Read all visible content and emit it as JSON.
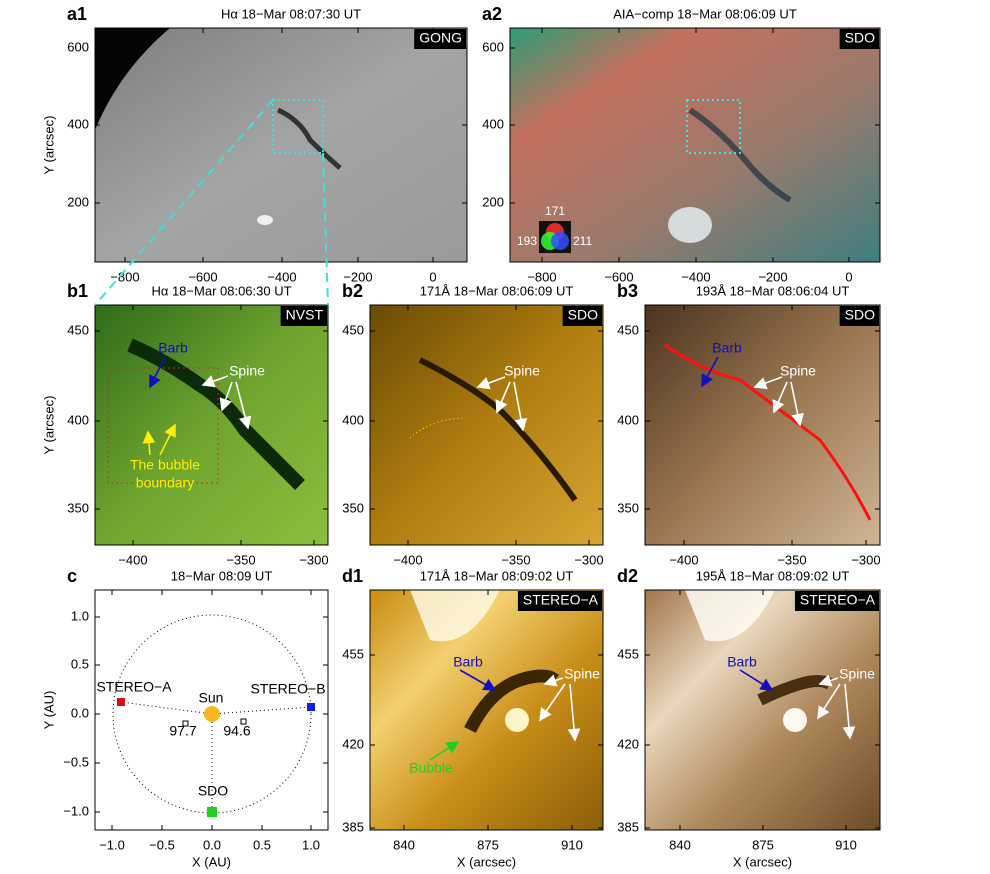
{
  "panels": [
    {
      "label": "a1",
      "title": "Hα 18−Mar 08:07:30 UT",
      "badge": "GONG",
      "y_label": "Y (arcsec)",
      "x_ticks": [
        "−800",
        "−600",
        "−400",
        "−200",
        "0"
      ],
      "y_ticks": [
        "600",
        "400",
        "200"
      ]
    },
    {
      "label": "a2",
      "title": "AIA−comp 18−Mar 08:06:09 UT",
      "badge": "SDO",
      "x_ticks": [
        "−800",
        "−600",
        "−400",
        "−200",
        "0"
      ],
      "y_ticks": [
        "600",
        "400",
        "200"
      ],
      "legend": [
        "171",
        "193",
        "211"
      ]
    },
    {
      "label": "b1",
      "title": "Hα 18−Mar 08:06:30 UT",
      "badge": "NVST",
      "y_label": "Y (arcsec)",
      "x_ticks": [
        "−400",
        "−350",
        "−300"
      ],
      "y_ticks": [
        "450",
        "400",
        "350"
      ],
      "annotations": [
        "Barb",
        "Spine",
        "The bubble",
        "boundary"
      ]
    },
    {
      "label": "b2",
      "title": "171Å 18−Mar 08:06:09 UT",
      "badge": "SDO",
      "x_ticks": [
        "−400",
        "−350",
        "−300"
      ],
      "y_ticks": [
        "450",
        "400",
        "350"
      ],
      "annotations": [
        "Spine"
      ]
    },
    {
      "label": "b3",
      "title": "193Å 18−Mar 08:06:04 UT",
      "badge": "SDO",
      "x_ticks": [
        "−400",
        "−350",
        "−300"
      ],
      "y_ticks": [
        "450",
        "400",
        "350"
      ],
      "annotations": [
        "Barb",
        "Spine"
      ]
    },
    {
      "label": "c",
      "title": "18−Mar 08:09 UT",
      "x_label": "X (AU)",
      "y_label": "Y (AU)",
      "x_ticks": [
        "−1.0",
        "−0.5",
        "0.0",
        "0.5",
        "1.0"
      ],
      "y_ticks": [
        "1.0",
        "0.5",
        "0.0",
        "−0.5",
        "−1.0"
      ],
      "annotations": [
        "STEREO−A",
        "Sun",
        "STEREO−B",
        "SDO",
        "97.7",
        "94.6"
      ]
    },
    {
      "label": "d1",
      "title": "171Å 18−Mar 08:09:02 UT",
      "badge": "STEREO−A",
      "x_label": "X (arcsec)",
      "x_ticks": [
        "840",
        "875",
        "910"
      ],
      "y_ticks": [
        "455",
        "420",
        "385"
      ],
      "annotations": [
        "Barb",
        "Spine",
        "Bubble"
      ]
    },
    {
      "label": "d2",
      "title": "195Å 18−Mar 08:09:02 UT",
      "badge": "STEREO−A",
      "x_label": "X (arcsec)",
      "x_ticks": [
        "840",
        "875",
        "910"
      ],
      "y_ticks": [
        "455",
        "420",
        "385"
      ],
      "annotations": [
        "Barb",
        "Spine"
      ]
    }
  ]
}
